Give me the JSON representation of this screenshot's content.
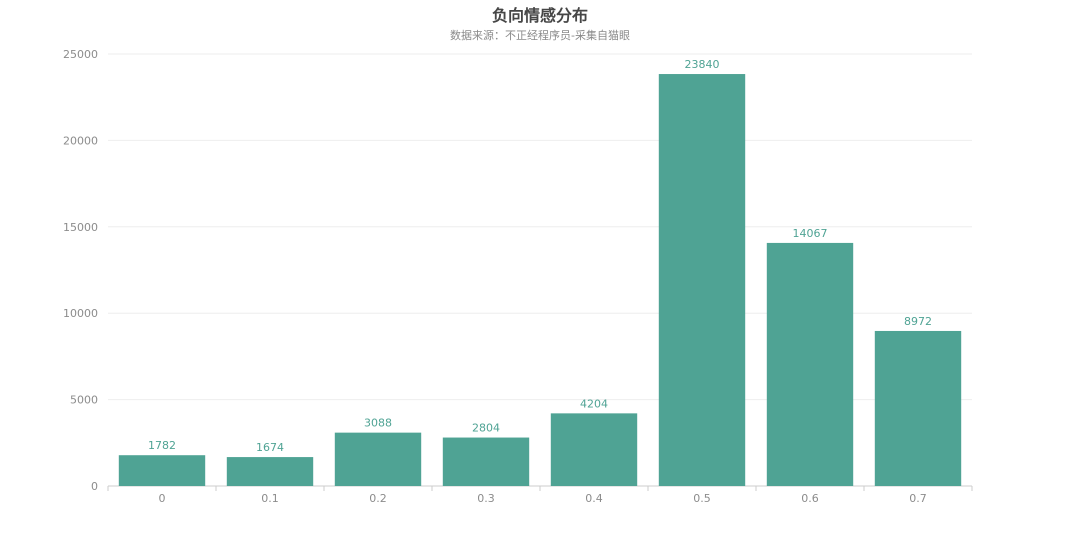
{
  "chart_data": {
    "type": "bar",
    "title": "负向情感分布",
    "subtitle": "数据来源：不正经程序员-采集自猫眼",
    "categories": [
      "0",
      "0.1",
      "0.2",
      "0.3",
      "0.4",
      "0.5",
      "0.6",
      "0.7"
    ],
    "values": [
      1782,
      1674,
      3088,
      2804,
      4204,
      23840,
      14067,
      8972
    ],
    "ylim": [
      0,
      25000
    ],
    "yticks": [
      0,
      5000,
      10000,
      15000,
      20000,
      25000
    ],
    "grid": true,
    "xlabel": "",
    "ylabel": "",
    "colors": {
      "bar": "#4fa394",
      "label": "#4fa394",
      "grid": "#eeeeee",
      "axis": "#cccccc"
    }
  }
}
